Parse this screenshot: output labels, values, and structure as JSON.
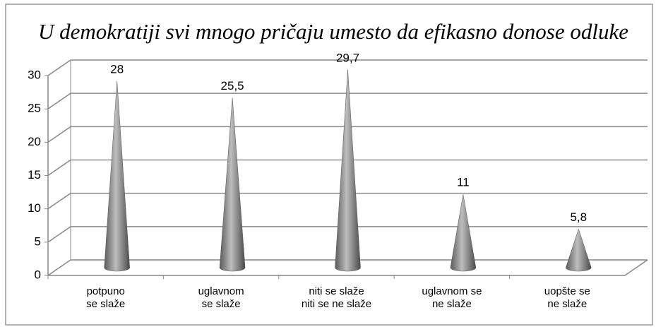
{
  "chart_data": {
    "type": "cone",
    "title": "U demokratiji svi mnogo pričaju umesto da efikasno donose odluke",
    "categories": [
      "potpuno\nse slaže",
      "uglavnom\nse slaže",
      "niti se slaže\nniti se ne slaže",
      "uglavnom se\nne slaže",
      "uopšte se\nne slaže"
    ],
    "values": [
      28,
      25.5,
      29.7,
      11,
      5.8
    ],
    "value_labels": [
      "28",
      "25,5",
      "29,7",
      "11",
      "5,8"
    ],
    "color": "#8c8c8c",
    "ylim": [
      0,
      30
    ],
    "yticks": [
      0,
      5,
      10,
      15,
      20,
      25,
      30
    ],
    "grid": true
  }
}
